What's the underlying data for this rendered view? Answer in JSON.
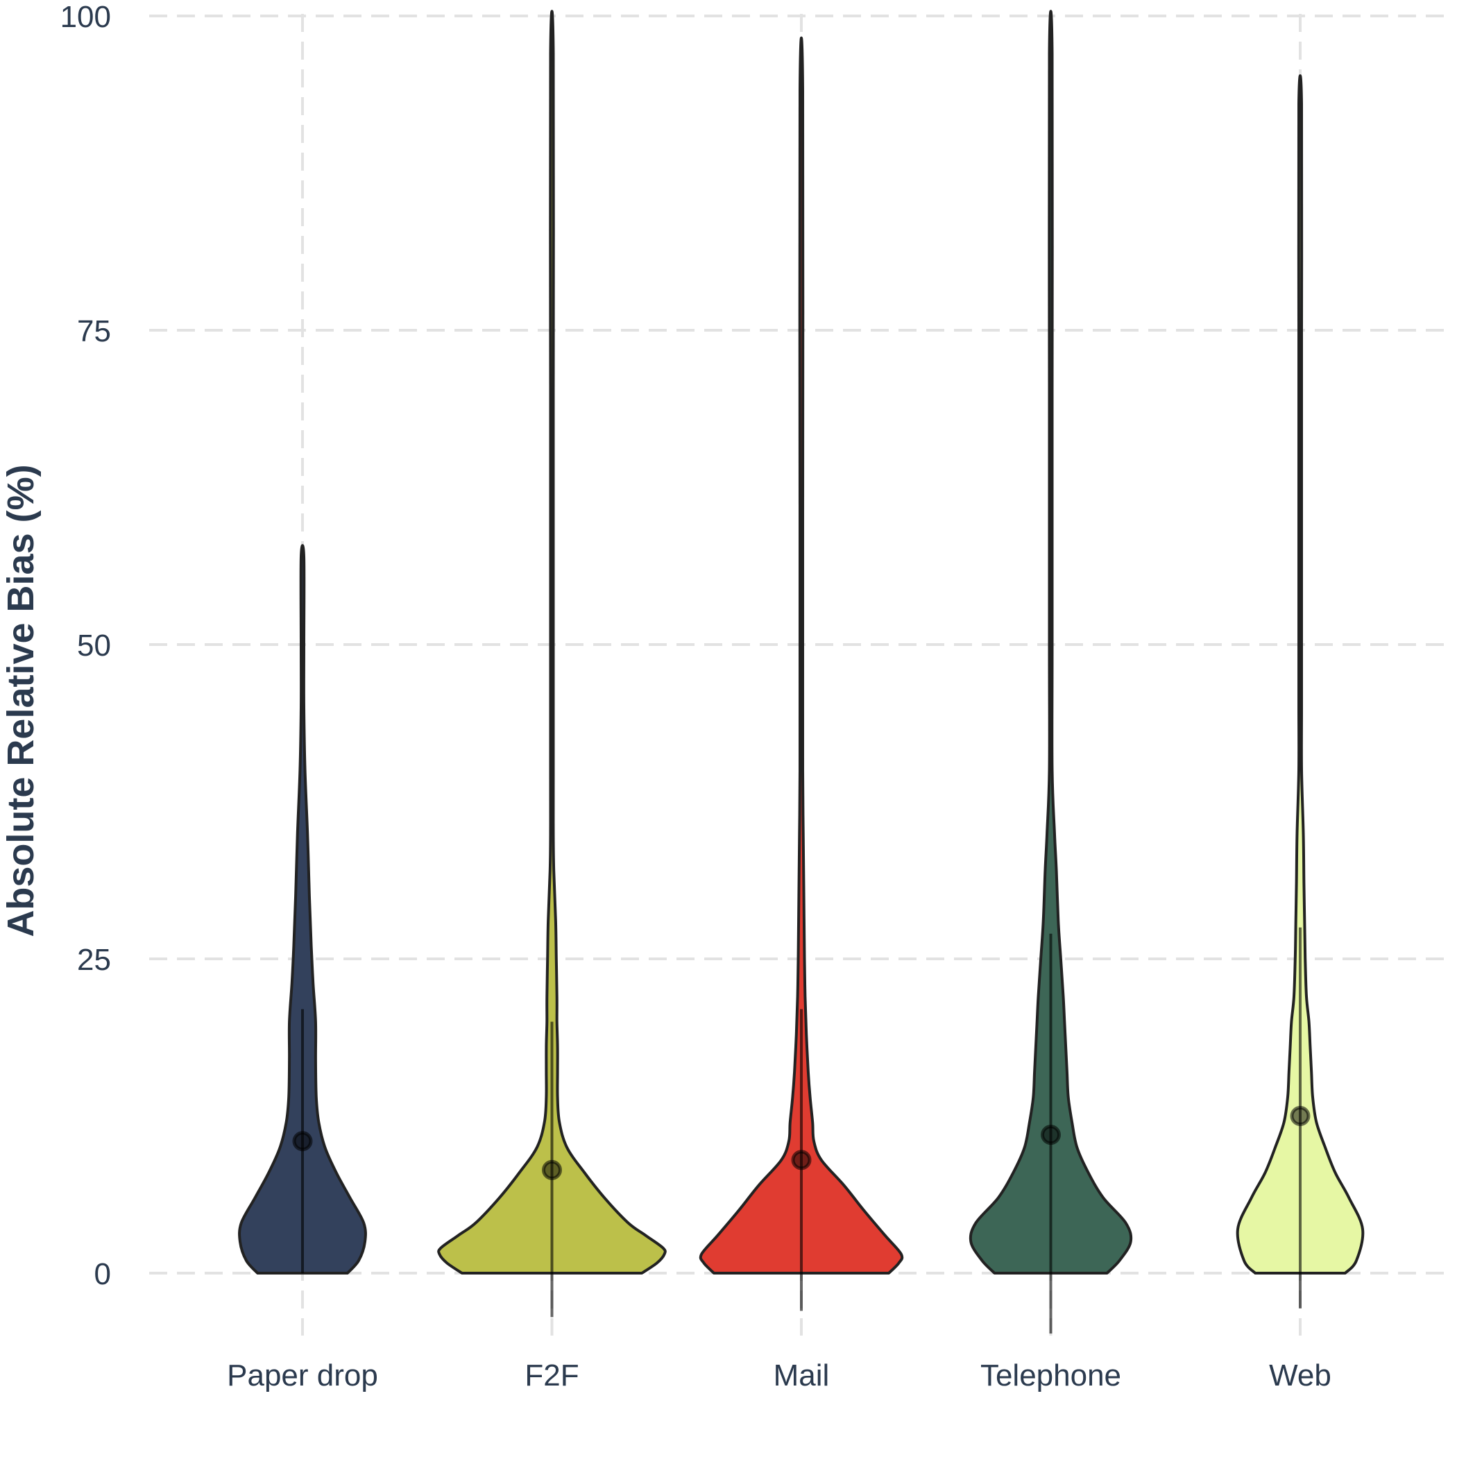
{
  "chart_data": {
    "type": "violin",
    "title": "",
    "xlabel": "",
    "ylabel": "Absolute Relative Bias (%)",
    "ylim": [
      0,
      100
    ],
    "yticks": [
      0,
      25,
      50,
      75,
      100
    ],
    "grid": {
      "horizontal": true,
      "vertical": true,
      "style": "dashed"
    },
    "legend": "none",
    "categories": [
      "Paper drop",
      "F2F",
      "Mail",
      "Telephone",
      "Web"
    ],
    "series": [
      {
        "category": "Paper drop",
        "color": "#33415c",
        "max": 57,
        "mean": 10.5,
        "error_low": 0,
        "error_high": 21,
        "density": [
          [
            0,
            0.36
          ],
          [
            1,
            0.45
          ],
          [
            2.5,
            0.5
          ],
          [
            4,
            0.49
          ],
          [
            6,
            0.38
          ],
          [
            8,
            0.27
          ],
          [
            10,
            0.18
          ],
          [
            12,
            0.13
          ],
          [
            14,
            0.11
          ],
          [
            17,
            0.105
          ],
          [
            20,
            0.105
          ],
          [
            23,
            0.085
          ],
          [
            26,
            0.07
          ],
          [
            30,
            0.055
          ],
          [
            35,
            0.04
          ],
          [
            40,
            0.02
          ],
          [
            45,
            0.006
          ],
          [
            50,
            0.005
          ],
          [
            57,
            0.004
          ]
        ]
      },
      {
        "category": "F2F",
        "color": "#bcc04a",
        "max": 97,
        "mean": 8.2,
        "error_low": -3.5,
        "error_high": 20,
        "density": [
          [
            0,
            0.72
          ],
          [
            0.8,
            0.84
          ],
          [
            1.5,
            0.9
          ],
          [
            2,
            0.89
          ],
          [
            3,
            0.75
          ],
          [
            4,
            0.61
          ],
          [
            6,
            0.42
          ],
          [
            8,
            0.26
          ],
          [
            10,
            0.12
          ],
          [
            12,
            0.06
          ],
          [
            14,
            0.045
          ],
          [
            16,
            0.045
          ],
          [
            18,
            0.045
          ],
          [
            20,
            0.04
          ],
          [
            22,
            0.04
          ],
          [
            25,
            0.035
          ],
          [
            28,
            0.03
          ],
          [
            32,
            0.015
          ],
          [
            35,
            0.01
          ],
          [
            40,
            0.006
          ],
          [
            60,
            0.005
          ],
          [
            70,
            0.004
          ],
          [
            97,
            0.003
          ]
        ]
      },
      {
        "category": "Mail",
        "color": "#e03c31",
        "max": 94,
        "mean": 9,
        "error_low": -3,
        "error_high": 21,
        "density": [
          [
            0,
            0.7
          ],
          [
            0.8,
            0.78
          ],
          [
            1.5,
            0.8
          ],
          [
            3,
            0.67
          ],
          [
            5,
            0.5
          ],
          [
            7,
            0.34
          ],
          [
            9,
            0.16
          ],
          [
            10.5,
            0.1
          ],
          [
            12,
            0.09
          ],
          [
            14,
            0.07
          ],
          [
            16,
            0.055
          ],
          [
            19,
            0.04
          ],
          [
            22,
            0.03
          ],
          [
            25,
            0.025
          ],
          [
            30,
            0.02
          ],
          [
            35,
            0.015
          ],
          [
            40,
            0.01
          ],
          [
            50,
            0.004
          ],
          [
            60,
            0.003
          ],
          [
            94,
            0.002
          ]
        ]
      },
      {
        "category": "Telephone",
        "color": "#3d6656",
        "max": 97,
        "mean": 11,
        "error_low": -4.8,
        "error_high": 27,
        "density": [
          [
            0,
            0.45
          ],
          [
            1,
            0.55
          ],
          [
            2.5,
            0.64
          ],
          [
            4,
            0.6
          ],
          [
            6,
            0.42
          ],
          [
            8,
            0.3
          ],
          [
            10,
            0.21
          ],
          [
            12,
            0.17
          ],
          [
            14,
            0.14
          ],
          [
            16,
            0.13
          ],
          [
            18,
            0.12
          ],
          [
            20,
            0.11
          ],
          [
            22,
            0.1
          ],
          [
            25,
            0.08
          ],
          [
            28,
            0.06
          ],
          [
            32,
            0.045
          ],
          [
            35,
            0.03
          ],
          [
            40,
            0.01
          ],
          [
            50,
            0.006
          ],
          [
            70,
            0.004
          ],
          [
            97,
            0.003
          ]
        ]
      },
      {
        "category": "Web",
        "color": "#e6f7a4",
        "max": 93,
        "mean": 12.5,
        "error_low": -2.8,
        "error_high": 27.5,
        "density": [
          [
            0,
            0.36
          ],
          [
            1,
            0.45
          ],
          [
            3.5,
            0.5
          ],
          [
            6,
            0.39
          ],
          [
            8,
            0.28
          ],
          [
            10,
            0.2
          ],
          [
            12,
            0.13
          ],
          [
            14,
            0.1
          ],
          [
            16,
            0.09
          ],
          [
            18,
            0.08
          ],
          [
            20,
            0.07
          ],
          [
            22,
            0.05
          ],
          [
            25,
            0.04
          ],
          [
            28,
            0.035
          ],
          [
            31,
            0.03
          ],
          [
            35,
            0.025
          ],
          [
            40,
            0.01
          ],
          [
            45,
            0.005
          ],
          [
            50,
            0.008
          ],
          [
            55,
            0.004
          ],
          [
            75,
            0.004
          ],
          [
            93,
            0.002
          ]
        ]
      }
    ]
  }
}
